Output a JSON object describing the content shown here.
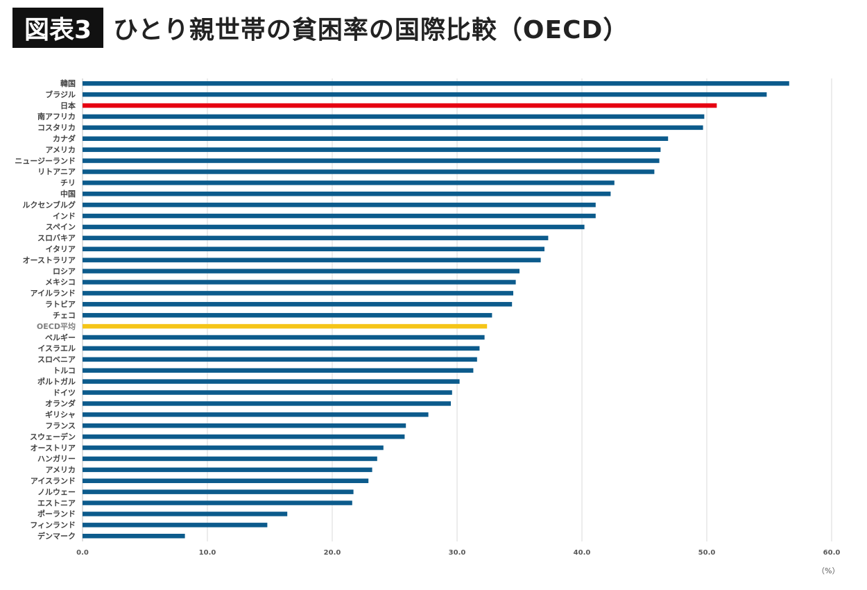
{
  "header": {
    "badge": "図表3",
    "title": "ひとり親世帯の貧困率の国際比較（OECD）"
  },
  "chart_data": {
    "type": "bar",
    "orientation": "horizontal",
    "title": "ひとり親世帯の貧困率の国際比較（OECD）",
    "xlabel": "（%）",
    "ylabel": "",
    "xlim": [
      0,
      60
    ],
    "xticks": [
      "0.0",
      "10.0",
      "20.0",
      "30.0",
      "40.0",
      "50.0",
      "60.0"
    ],
    "grid": true,
    "colors": {
      "default": "#0c5b8c",
      "japan": "#e60012",
      "oecd": "#f5c518"
    },
    "categories": [
      "韓国",
      "ブラジル",
      "日本",
      "南アフリカ",
      "コスタリカ",
      "カナダ",
      "アメリカ",
      "ニュージーランド",
      "リトアニア",
      "チリ",
      "中国",
      "ルクセンブルグ",
      "インド",
      "スペイン",
      "スロバキア",
      "イタリア",
      "オーストラリア",
      "ロシア",
      "メキシコ",
      "アイルランド",
      "ラトビア",
      "チェコ",
      "OECD平均",
      "ベルギー",
      "イスラエル",
      "スロベニア",
      "トルコ",
      "ポルトガル",
      "ドイツ",
      "オランダ",
      "ギリシャ",
      "フランス",
      "スウェーデン",
      "オーストリア",
      "ハンガリー",
      "アメリカ",
      "アイスランド",
      "ノルウェー",
      "エストニア",
      "ポーランド",
      "フィンランド",
      "デンマーク"
    ],
    "values": [
      56.6,
      54.8,
      50.8,
      49.8,
      49.7,
      46.9,
      46.3,
      46.2,
      45.8,
      42.6,
      42.3,
      41.1,
      41.1,
      40.2,
      37.3,
      37.0,
      36.7,
      35.0,
      34.7,
      34.5,
      34.4,
      32.8,
      32.4,
      32.2,
      31.8,
      31.6,
      31.3,
      30.2,
      29.6,
      29.5,
      27.7,
      25.9,
      25.8,
      24.1,
      23.6,
      23.2,
      22.9,
      21.7,
      21.6,
      16.4,
      14.8,
      8.2
    ]
  }
}
